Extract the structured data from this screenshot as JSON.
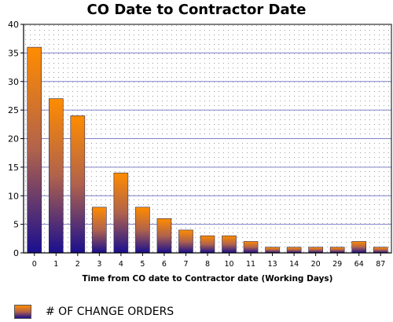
{
  "chart_data": {
    "type": "bar",
    "title": "CO Date to Contractor Date",
    "xlabel": "Time from CO date to Contractor date (Working Days)",
    "ylabel": "",
    "categories": [
      "0",
      "1",
      "2",
      "3",
      "4",
      "5",
      "6",
      "7",
      "8",
      "10",
      "11",
      "13",
      "14",
      "20",
      "29",
      "64",
      "87"
    ],
    "series": [
      {
        "name": "# OF CHANGE ORDERS",
        "values": [
          36,
          27,
          24,
          8,
          14,
          8,
          6,
          4,
          3,
          3,
          2,
          1,
          1,
          1,
          1,
          2,
          1
        ]
      }
    ],
    "ylim": [
      0,
      40
    ],
    "yticks": [
      0,
      5,
      10,
      15,
      20,
      25,
      30,
      35,
      40
    ],
    "grid": true,
    "legend_position": "bottom-left",
    "colors": {
      "bar_top": "#ff8c00",
      "bar_bottom": "#1a0f8f",
      "gridline": "#8080c8"
    }
  }
}
